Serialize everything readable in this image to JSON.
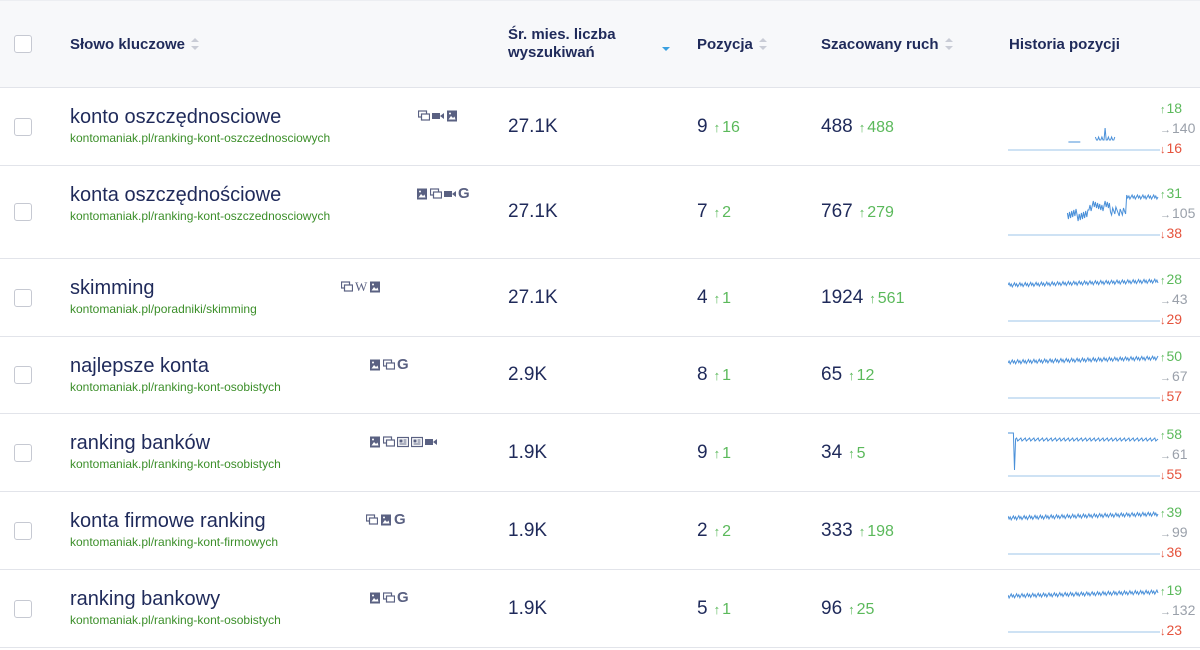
{
  "header": {
    "keyword": "Słowo kluczowe",
    "volume_line1": "Śr. mies. liczba",
    "volume_line2": "wyszukiwań",
    "position": "Pozycja",
    "traffic": "Szacowany ruch",
    "history": "Historia pozycji"
  },
  "colors": {
    "accent": "#3aa0e0",
    "url": "#3c8f2a",
    "up": "#5bb95b",
    "down": "#e5533d",
    "text": "#1f2a5a"
  },
  "rows": [
    {
      "keyword": "konto oszczędnosciowe",
      "url": "kontomaniak.pl/ranking-kont-oszczednosciowych",
      "features": [
        "comments-icon",
        "video-icon",
        "image-icon"
      ],
      "volume": "27.1K",
      "position": "9",
      "position_change": "16",
      "traffic": "488",
      "traffic_change": "488",
      "hist_up": "18",
      "hist_mid": "140",
      "hist_down": "16",
      "spark": [
        100,
        100,
        100,
        100,
        100,
        100,
        100,
        100,
        100,
        100,
        100,
        100,
        100,
        100,
        100,
        100,
        100,
        100,
        100,
        100,
        100,
        100,
        100,
        100,
        100,
        100,
        100,
        100,
        100,
        100,
        100,
        100,
        100,
        100,
        100,
        100,
        100,
        100,
        100,
        100,
        100,
        100,
        100,
        100,
        100,
        100,
        100,
        100,
        100,
        100,
        100,
        100,
        100,
        100,
        100,
        100,
        100,
        100,
        100,
        100,
        100,
        100,
        100,
        100,
        100,
        100,
        100,
        100,
        100,
        100,
        100,
        100,
        100,
        100,
        100,
        100,
        100,
        100,
        100,
        100,
        100,
        100,
        100,
        100,
        100,
        100,
        100,
        100,
        100,
        100,
        100,
        100,
        100,
        100,
        100,
        100,
        100,
        100,
        100,
        100,
        100,
        100,
        100,
        100,
        100,
        100,
        100,
        100,
        100,
        100,
        100,
        100,
        100,
        100,
        100,
        100,
        100,
        100,
        100,
        100,
        100,
        100,
        100,
        100,
        100,
        100,
        100,
        100,
        100,
        100,
        100,
        100,
        100,
        100,
        100,
        100,
        100,
        100,
        100,
        100
      ]
    },
    {
      "keyword": "konta oszczędnościowe",
      "url": "kontomaniak.pl/ranking-kont-oszczednosciowych",
      "features": [
        "image-icon",
        "comments-icon",
        "video-icon",
        "google-icon"
      ],
      "volume": "27.1K",
      "position": "7",
      "position_change": "2",
      "traffic": "767",
      "traffic_change": "279",
      "hist_up": "31",
      "hist_mid": "105",
      "hist_down": "38"
    },
    {
      "keyword": "skimming",
      "url": "kontomaniak.pl/poradniki/skimming",
      "features": [
        "comments-icon",
        "wiki-icon",
        "image-icon"
      ],
      "volume": "27.1K",
      "position": "4",
      "position_change": "1",
      "traffic": "1924",
      "traffic_change": "561",
      "hist_up": "28",
      "hist_mid": "43",
      "hist_down": "29"
    },
    {
      "keyword": "najlepsze konta",
      "url": "kontomaniak.pl/ranking-kont-osobistych",
      "features": [
        "image-icon",
        "comments-icon",
        "google-icon"
      ],
      "volume": "2.9K",
      "position": "8",
      "position_change": "1",
      "traffic": "65",
      "traffic_change": "12",
      "hist_up": "50",
      "hist_mid": "67",
      "hist_down": "57"
    },
    {
      "keyword": "ranking banków",
      "url": "kontomaniak.pl/ranking-kont-osobistych",
      "features": [
        "image-icon",
        "comments-icon",
        "news-icon",
        "news-icon",
        "video-icon"
      ],
      "volume": "1.9K",
      "position": "9",
      "position_change": "1",
      "traffic": "34",
      "traffic_change": "5",
      "hist_up": "58",
      "hist_mid": "61",
      "hist_down": "55"
    },
    {
      "keyword": "konta firmowe ranking",
      "url": "kontomaniak.pl/ranking-kont-firmowych",
      "features": [
        "comments-icon",
        "image-icon",
        "google-icon"
      ],
      "volume": "1.9K",
      "position": "2",
      "position_change": "2",
      "traffic": "333",
      "traffic_change": "198",
      "hist_up": "39",
      "hist_mid": "99",
      "hist_down": "36"
    },
    {
      "keyword": "ranking bankowy",
      "url": "kontomaniak.pl/ranking-kont-osobistych",
      "features": [
        "image-icon",
        "comments-icon",
        "google-icon"
      ],
      "volume": "1.9K",
      "position": "5",
      "position_change": "1",
      "traffic": "96",
      "traffic_change": "25",
      "hist_up": "19",
      "hist_mid": "132",
      "hist_down": "23"
    }
  ]
}
